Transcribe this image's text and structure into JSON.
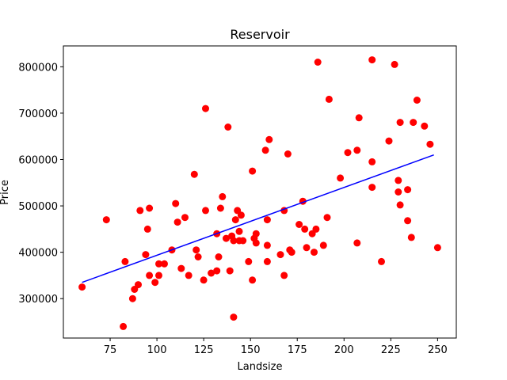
{
  "chart_data": {
    "type": "scatter",
    "title": "Reservoir",
    "xlabel": "Landsize",
    "ylabel": "Price",
    "xlim": [
      50,
      260
    ],
    "ylim": [
      215000,
      845000
    ],
    "x_ticks": [
      75,
      100,
      125,
      150,
      175,
      200,
      225,
      250
    ],
    "y_ticks": [
      300000,
      400000,
      500000,
      600000,
      700000,
      800000
    ],
    "grid": false,
    "legend": "none",
    "colors": {
      "points": "#ff0000",
      "fit_line": "#0000ff"
    },
    "series": [
      {
        "type": "scatter",
        "points": [
          [
            60,
            325000
          ],
          [
            73,
            470000
          ],
          [
            82,
            240000
          ],
          [
            83,
            380000
          ],
          [
            87,
            300000
          ],
          [
            88,
            320000
          ],
          [
            90,
            330000
          ],
          [
            91,
            490000
          ],
          [
            94,
            395000
          ],
          [
            95,
            450000
          ],
          [
            96,
            495000
          ],
          [
            96,
            350000
          ],
          [
            99,
            335000
          ],
          [
            101,
            375000
          ],
          [
            101,
            350000
          ],
          [
            104,
            375000
          ],
          [
            108,
            405000
          ],
          [
            110,
            505000
          ],
          [
            111,
            465000
          ],
          [
            113,
            365000
          ],
          [
            115,
            475000
          ],
          [
            117,
            350000
          ],
          [
            120,
            568000
          ],
          [
            121,
            405000
          ],
          [
            122,
            390000
          ],
          [
            125,
            340000
          ],
          [
            126,
            710000
          ],
          [
            126,
            490000
          ],
          [
            129,
            355000
          ],
          [
            132,
            440000
          ],
          [
            132,
            360000
          ],
          [
            133,
            390000
          ],
          [
            134,
            495000
          ],
          [
            135,
            520000
          ],
          [
            137,
            430000
          ],
          [
            138,
            670000
          ],
          [
            139,
            360000
          ],
          [
            140,
            435000
          ],
          [
            141,
            260000
          ],
          [
            141,
            425000
          ],
          [
            142,
            470000
          ],
          [
            143,
            490000
          ],
          [
            144,
            445000
          ],
          [
            144,
            425000
          ],
          [
            145,
            480000
          ],
          [
            146,
            425000
          ],
          [
            149,
            380000
          ],
          [
            151,
            575000
          ],
          [
            151,
            340000
          ],
          [
            152,
            430000
          ],
          [
            153,
            440000
          ],
          [
            153,
            420000
          ],
          [
            158,
            620000
          ],
          [
            159,
            415000
          ],
          [
            159,
            380000
          ],
          [
            159,
            470000
          ],
          [
            160,
            643000
          ],
          [
            166,
            395000
          ],
          [
            168,
            490000
          ],
          [
            168,
            350000
          ],
          [
            170,
            612000
          ],
          [
            171,
            405000
          ],
          [
            172,
            400000
          ],
          [
            176,
            460000
          ],
          [
            178,
            510000
          ],
          [
            179,
            450000
          ],
          [
            180,
            410000
          ],
          [
            183,
            440000
          ],
          [
            184,
            400000
          ],
          [
            185,
            450000
          ],
          [
            186,
            810000
          ],
          [
            189,
            415000
          ],
          [
            191,
            475000
          ],
          [
            192,
            730000
          ],
          [
            198,
            560000
          ],
          [
            202,
            615000
          ],
          [
            207,
            620000
          ],
          [
            207,
            420000
          ],
          [
            208,
            690000
          ],
          [
            215,
            815000
          ],
          [
            215,
            595000
          ],
          [
            215,
            540000
          ],
          [
            220,
            380000
          ],
          [
            224,
            640000
          ],
          [
            227,
            805000
          ],
          [
            229,
            555000
          ],
          [
            229,
            530000
          ],
          [
            230,
            680000
          ],
          [
            230,
            502000
          ],
          [
            234,
            535000
          ],
          [
            234,
            468000
          ],
          [
            236,
            432000
          ],
          [
            237,
            680000
          ],
          [
            239,
            728000
          ],
          [
            243,
            672000
          ],
          [
            246,
            633000
          ],
          [
            250,
            410000
          ]
        ]
      },
      {
        "type": "line",
        "x": [
          60,
          248
        ],
        "y": [
          335000,
          610000
        ]
      }
    ]
  }
}
